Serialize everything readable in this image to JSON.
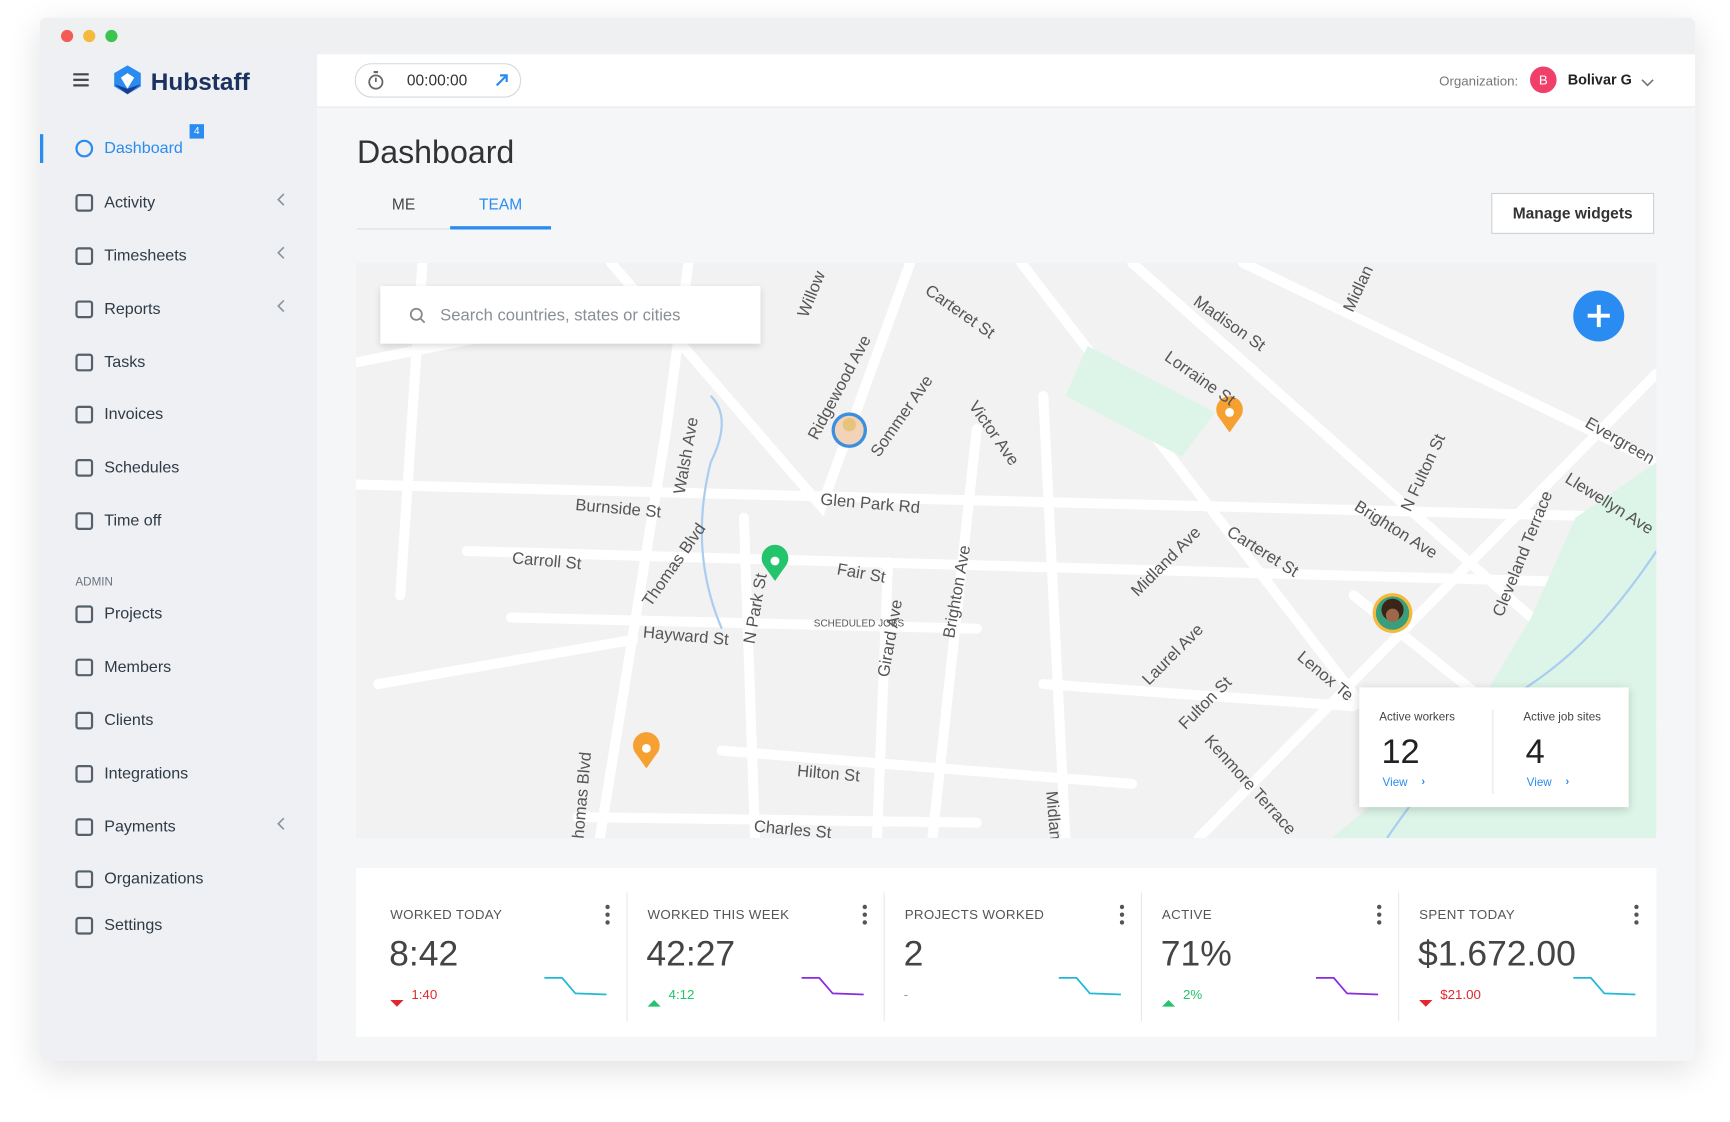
{
  "header": {
    "brand": "Hubstaff",
    "timer": "00:00:00",
    "org_label": "Organization:",
    "org_initial": "B",
    "org_name": "Bolivar G"
  },
  "sidebar": {
    "items": [
      {
        "label": "Dashboard",
        "badge": "4",
        "active": true
      },
      {
        "label": "Activity",
        "submenu": true
      },
      {
        "label": "Timesheets",
        "submenu": true
      },
      {
        "label": "Reports",
        "submenu": true
      },
      {
        "label": "Tasks"
      },
      {
        "label": "Invoices"
      },
      {
        "label": "Schedules"
      },
      {
        "label": "Time off"
      }
    ],
    "admin_heading": "ADMIN",
    "admin_items": [
      {
        "label": "Projects"
      },
      {
        "label": "Members"
      },
      {
        "label": "Clients"
      },
      {
        "label": "Integrations"
      },
      {
        "label": "Payments",
        "submenu": true
      },
      {
        "label": "Organizations"
      },
      {
        "label": "Settings"
      }
    ]
  },
  "page": {
    "title": "Dashboard",
    "tabs": [
      "ME",
      "TEAM"
    ],
    "active_tab": 1,
    "button": "Manage widgets"
  },
  "map": {
    "search_placeholder": "Search countries, states or cities",
    "scheduled": "SCHEDULED JOBS",
    "streets": [
      "Willow",
      "Carteret St",
      "Madison St",
      "Midlan",
      "Lorraine St",
      "Ridgewood Ave",
      "Sommer Ave",
      "Victor Ave",
      "Walsh Ave",
      "Burnside St",
      "Glen Park Rd",
      "Carroll St",
      "Thomas Blvd",
      "Fair St",
      "N Park St",
      "Hayward St",
      "Girard Ave",
      "Brighton Ave",
      "Midland Ave",
      "Carteret St",
      "N Fulton St",
      "Brighton Ave",
      "Evergreen",
      "Llewellyn Ave",
      "Cleveland Terrace",
      "Laurel Ave",
      "Lenox Te",
      "Fulton St",
      "Kenmore Terrace",
      "Thomas Blvd",
      "Hilton St",
      "Charles St",
      "Midland"
    ],
    "stats": [
      {
        "label": "Active workers",
        "value": "12",
        "link": "View"
      },
      {
        "label": "Active job sites",
        "value": "4",
        "link": "View"
      }
    ]
  },
  "widgets": [
    {
      "label": "WORKED TODAY",
      "value": "8:42",
      "change": "1:40",
      "direction": "down"
    },
    {
      "label": "WORKED THIS WEEK",
      "value": "42:27",
      "change": "4:12",
      "direction": "up"
    },
    {
      "label": "PROJECTS WORKED",
      "value": "2",
      "change": "-",
      "direction": "none"
    },
    {
      "label": "ACTIVE",
      "value": "71%",
      "change": "2%",
      "direction": "up"
    },
    {
      "label": "SPENT TODAY",
      "value": "$1.672.00",
      "change": "$21.00",
      "direction": "down"
    }
  ]
}
